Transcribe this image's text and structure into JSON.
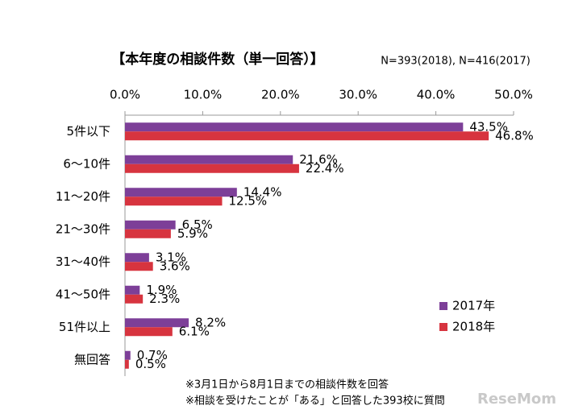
{
  "chart_data": {
    "type": "hbar",
    "title": "【本年度の相談件数（単一回答）】",
    "subtitle": "N=393(2018), N=416(2017)",
    "categories": [
      "5件以下",
      "6～10件",
      "11～20件",
      "21～30件",
      "31～40件",
      "41～50件",
      "51件以上",
      "無回答"
    ],
    "series": [
      {
        "name": "2017年",
        "color": "#7d3f98",
        "values": [
          43.5,
          21.6,
          14.4,
          6.5,
          3.1,
          1.9,
          8.2,
          0.7
        ],
        "value_labels": [
          "43.5%",
          "21.6%",
          "14.4%",
          "6.5%",
          "3.1%",
          "1.9%",
          "8.2%",
          "0.7%"
        ]
      },
      {
        "name": "2018年",
        "color": "#d7343f",
        "values": [
          46.8,
          22.4,
          12.5,
          5.9,
          3.6,
          2.3,
          6.1,
          0.5
        ],
        "value_labels": [
          "46.8%",
          "22.4%",
          "12.5%",
          "5.9%",
          "3.6%",
          "2.3%",
          "6.1%",
          "0.5%"
        ]
      }
    ],
    "xlim": [
      0,
      50
    ],
    "xticks": [
      {
        "value": 0,
        "label": "0.0%"
      },
      {
        "value": 10,
        "label": "10.0%"
      },
      {
        "value": 20,
        "label": "20.0%"
      },
      {
        "value": 30,
        "label": "30.0%"
      },
      {
        "value": 40,
        "label": "40.0%"
      },
      {
        "value": 50,
        "label": "50.0%"
      }
    ],
    "legend": "bottom-right",
    "notes": [
      "※3月1日から8月1日までの相談件数を回答",
      "※相談を受けたことが「ある」と回答した393校に質問"
    ],
    "watermark": "ReseMom"
  }
}
